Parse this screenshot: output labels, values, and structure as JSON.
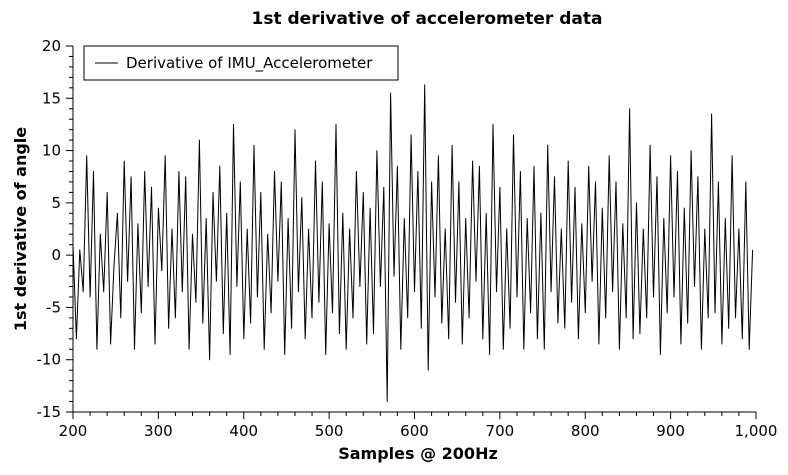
{
  "chart_data": {
    "type": "line",
    "title": "1st derivative of accelerometer data",
    "xlabel": "Samples @ 200Hz",
    "ylabel": "1st derivative of angle",
    "xlim": [
      200,
      1000
    ],
    "ylim": [
      -15,
      20
    ],
    "x_ticks": [
      200,
      300,
      400,
      500,
      600,
      700,
      800,
      900,
      1000
    ],
    "x_tick_labels": [
      "200",
      "300",
      "400",
      "500",
      "600",
      "700",
      "800",
      "900",
      "1,000"
    ],
    "y_ticks": [
      -15,
      -10,
      -5,
      0,
      5,
      10,
      15,
      20
    ],
    "y_tick_labels": [
      "-15",
      "-10",
      "-5",
      "0",
      "5",
      "10",
      "15",
      "20"
    ],
    "grid": false,
    "legend_position": "top-left",
    "line_color": "#000000",
    "series": [
      {
        "name": "Derivative of IMU_Accelerometer",
        "x": [
          200,
          204,
          208,
          212,
          216,
          220,
          224,
          228,
          232,
          236,
          240,
          244,
          248,
          252,
          256,
          260,
          264,
          268,
          272,
          276,
          280,
          284,
          288,
          292,
          296,
          300,
          304,
          308,
          312,
          316,
          320,
          324,
          328,
          332,
          336,
          340,
          344,
          348,
          352,
          356,
          360,
          364,
          368,
          372,
          376,
          380,
          384,
          388,
          392,
          396,
          400,
          404,
          408,
          412,
          416,
          420,
          424,
          428,
          432,
          436,
          440,
          444,
          448,
          452,
          456,
          460,
          464,
          468,
          472,
          476,
          480,
          484,
          488,
          492,
          496,
          500,
          504,
          508,
          512,
          516,
          520,
          524,
          528,
          532,
          536,
          540,
          544,
          548,
          552,
          556,
          560,
          564,
          568,
          572,
          576,
          580,
          584,
          588,
          592,
          596,
          600,
          604,
          608,
          612,
          616,
          620,
          624,
          628,
          632,
          636,
          640,
          644,
          648,
          652,
          656,
          660,
          664,
          668,
          672,
          676,
          680,
          684,
          688,
          692,
          696,
          700,
          704,
          708,
          712,
          716,
          720,
          724,
          728,
          732,
          736,
          740,
          744,
          748,
          752,
          756,
          760,
          764,
          768,
          772,
          776,
          780,
          784,
          788,
          792,
          796,
          800,
          804,
          808,
          812,
          816,
          820,
          824,
          828,
          832,
          836,
          840,
          844,
          848,
          852,
          856,
          860,
          864,
          868,
          872,
          876,
          880,
          884,
          888,
          892,
          896,
          900,
          904,
          908,
          912,
          916,
          920,
          924,
          928,
          932,
          936,
          940,
          944,
          948,
          952,
          956,
          960,
          964,
          968,
          972,
          976,
          980,
          984,
          988,
          992,
          996
        ],
        "y": [
          1.0,
          -8.0,
          0.5,
          -3.5,
          9.5,
          -4.0,
          8.0,
          -9.0,
          2.0,
          -3.5,
          6.0,
          -8.5,
          -1.0,
          4.0,
          -6.0,
          9.0,
          -2.5,
          7.5,
          -9.0,
          3.0,
          -5.5,
          8.0,
          -3.0,
          6.5,
          -8.5,
          4.5,
          -1.5,
          9.5,
          -7.0,
          2.5,
          -6.0,
          8.0,
          -3.5,
          7.5,
          -9.0,
          2.0,
          -4.5,
          11.0,
          -6.5,
          3.5,
          -10.0,
          6.0,
          -2.5,
          8.5,
          -7.5,
          4.0,
          -9.5,
          12.5,
          -3.0,
          7.0,
          -8.0,
          2.5,
          -6.5,
          10.5,
          -4.0,
          6.0,
          -9.0,
          2.0,
          -5.5,
          8.0,
          -2.5,
          7.0,
          -9.5,
          3.5,
          -7.0,
          12.0,
          -3.5,
          5.5,
          -8.0,
          2.5,
          -6.0,
          9.0,
          -4.5,
          7.0,
          -9.5,
          3.0,
          -5.5,
          12.5,
          -7.5,
          4.0,
          -9.0,
          2.5,
          -6.0,
          8.0,
          -3.0,
          6.0,
          -8.5,
          4.5,
          -7.5,
          10.0,
          -3.0,
          6.5,
          -14.0,
          15.5,
          -2.0,
          8.5,
          -9.0,
          3.5,
          -6.0,
          11.5,
          -3.5,
          8.0,
          -7.0,
          16.3,
          -11.0,
          7.0,
          -4.0,
          9.5,
          -6.5,
          2.5,
          -8.0,
          10.5,
          -4.5,
          7.0,
          -8.5,
          3.5,
          -6.0,
          9.0,
          -2.5,
          8.5,
          -8.0,
          4.0,
          -9.5,
          12.5,
          -3.5,
          6.5,
          -9.0,
          2.5,
          -7.0,
          11.5,
          -4.0,
          8.0,
          -9.0,
          3.5,
          -5.5,
          8.5,
          -8.0,
          4.0,
          -9.0,
          10.5,
          -3.5,
          7.5,
          -6.5,
          2.5,
          -7.0,
          9.0,
          -4.5,
          6.5,
          -8.0,
          3.0,
          -5.5,
          8.5,
          -2.5,
          7.0,
          -8.5,
          4.5,
          -6.0,
          9.5,
          -3.5,
          7.0,
          -9.0,
          3.0,
          -6.0,
          14.0,
          -8.0,
          5.0,
          -7.5,
          2.5,
          -6.0,
          10.5,
          -4.0,
          7.5,
          -9.5,
          3.5,
          -5.5,
          9.5,
          -4.0,
          8.0,
          -8.5,
          4.5,
          -6.5,
          10.0,
          -3.0,
          7.5,
          -9.0,
          2.5,
          -6.0,
          13.5,
          -5.5,
          7.0,
          -8.5,
          3.5,
          -7.0,
          9.5,
          -6.0,
          2.5,
          -8.0,
          7.0,
          -9.0,
          0.5
        ]
      }
    ]
  }
}
